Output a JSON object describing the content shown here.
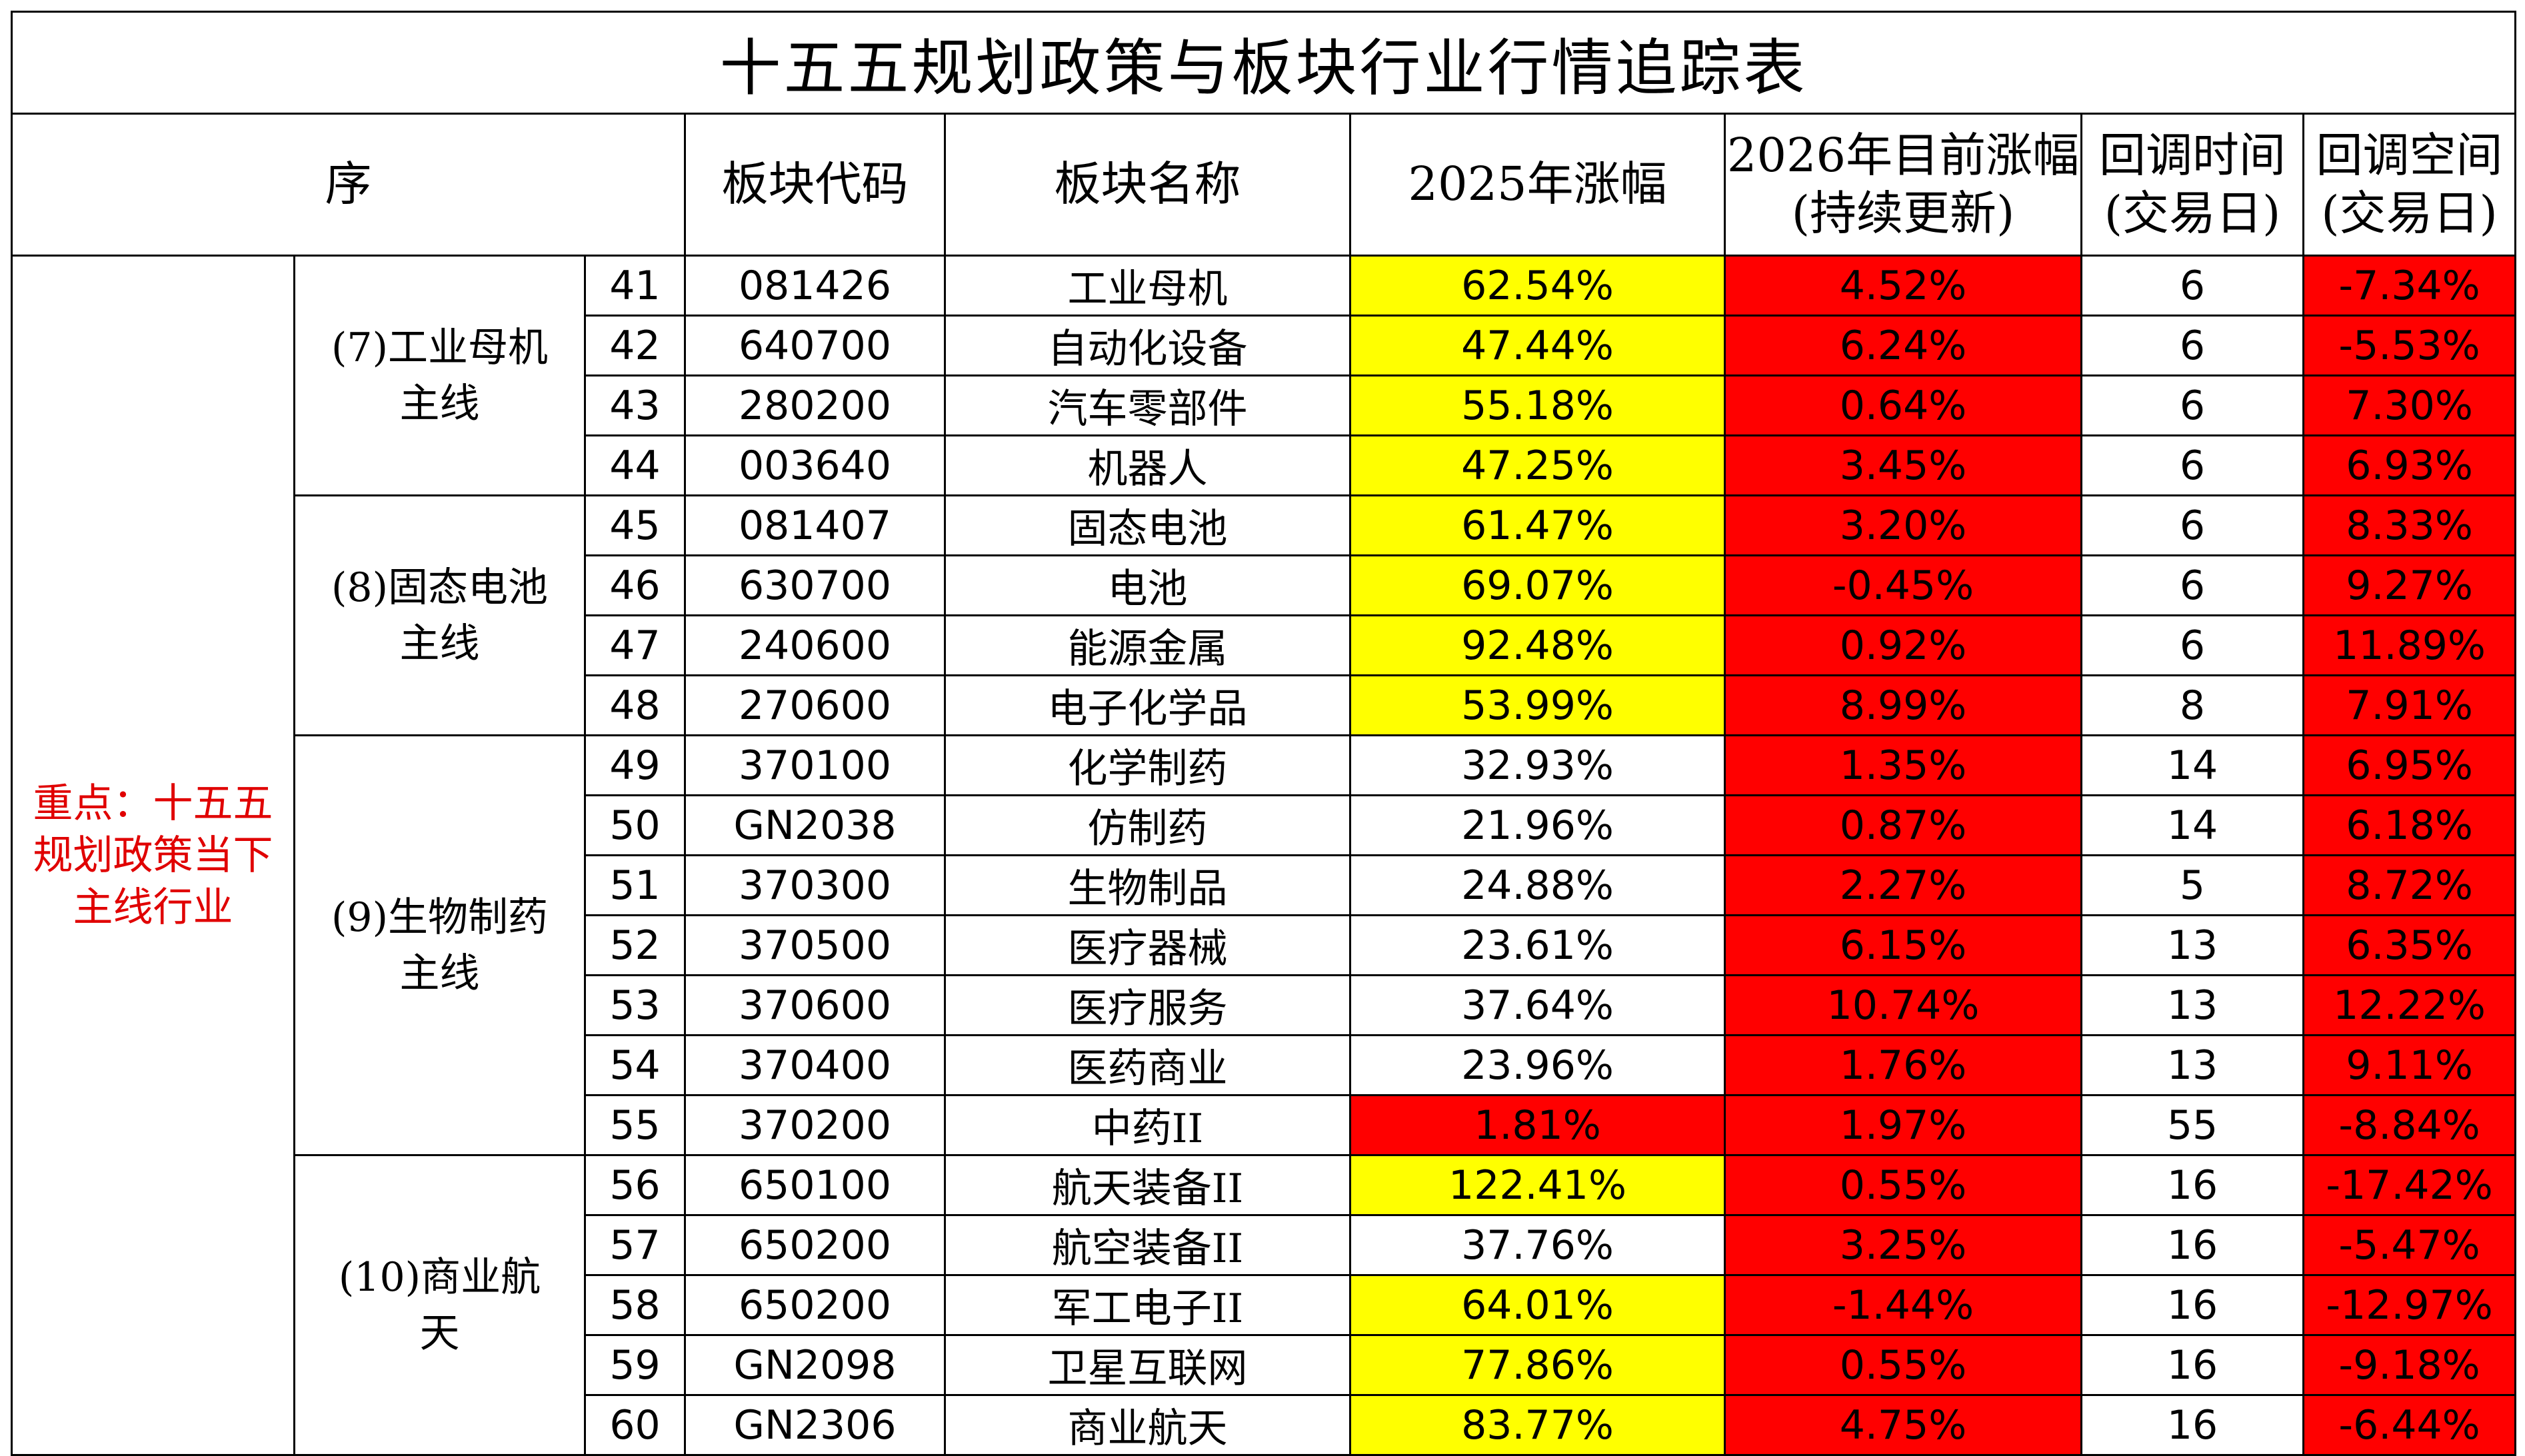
{
  "title": "十五五规划政策与板块行业行情追踪表",
  "headers": {
    "seq": "序",
    "code": "板块代码",
    "name": "板块名称",
    "gain2025": "2025年涨幅",
    "gain2026_line1": "2026年目前涨幅",
    "gain2026_line2": "(持续更新)",
    "pullback_time_line1": "回调时间",
    "pullback_time_line2": "(交易日)",
    "pullback_space_line1": "回调空间",
    "pullback_space_line2": "(交易日)"
  },
  "focus_note": "重点：十五五规划政策当下主线行业",
  "groups": [
    {
      "label_line1": "(7)工业母机",
      "label_line2": "主线"
    },
    {
      "label_line1": "(8)固态电池",
      "label_line2": "主线"
    },
    {
      "label_line1": "(9)生物制药",
      "label_line2": "主线"
    },
    {
      "label_line1": "(10)商业航",
      "label_line2": "天"
    }
  ],
  "rows": [
    {
      "seq": "41",
      "code": "081426",
      "name": "工业母机",
      "gain2025": "62.54%",
      "gain2026": "4.52%",
      "days": "6",
      "space": "-7.34%"
    },
    {
      "seq": "42",
      "code": "640700",
      "name": "自动化设备",
      "gain2025": "47.44%",
      "gain2026": "6.24%",
      "days": "6",
      "space": "-5.53%"
    },
    {
      "seq": "43",
      "code": "280200",
      "name": "汽车零部件",
      "gain2025": "55.18%",
      "gain2026": "0.64%",
      "days": "6",
      "space": "7.30%"
    },
    {
      "seq": "44",
      "code": "003640",
      "name": "机器人",
      "gain2025": "47.25%",
      "gain2026": "3.45%",
      "days": "6",
      "space": "6.93%"
    },
    {
      "seq": "45",
      "code": "081407",
      "name": "固态电池",
      "gain2025": "61.47%",
      "gain2026": "3.20%",
      "days": "6",
      "space": "8.33%"
    },
    {
      "seq": "46",
      "code": "630700",
      "name": "电池",
      "gain2025": "69.07%",
      "gain2026": "-0.45%",
      "days": "6",
      "space": "9.27%"
    },
    {
      "seq": "47",
      "code": "240600",
      "name": "能源金属",
      "gain2025": "92.48%",
      "gain2026": "0.92%",
      "days": "6",
      "space": "11.89%"
    },
    {
      "seq": "48",
      "code": "270600",
      "name": "电子化学品",
      "gain2025": "53.99%",
      "gain2026": "8.99%",
      "days": "8",
      "space": "7.91%"
    },
    {
      "seq": "49",
      "code": "370100",
      "name": "化学制药",
      "gain2025": "32.93%",
      "gain2026": "1.35%",
      "days": "14",
      "space": "6.95%"
    },
    {
      "seq": "50",
      "code": "GN2038",
      "name": "仿制药",
      "gain2025": "21.96%",
      "gain2026": "0.87%",
      "days": "14",
      "space": "6.18%"
    },
    {
      "seq": "51",
      "code": "370300",
      "name": "生物制品",
      "gain2025": "24.88%",
      "gain2026": "2.27%",
      "days": "5",
      "space": "8.72%"
    },
    {
      "seq": "52",
      "code": "370500",
      "name": "医疗器械",
      "gain2025": "23.61%",
      "gain2026": "6.15%",
      "days": "13",
      "space": "6.35%"
    },
    {
      "seq": "53",
      "code": "370600",
      "name": "医疗服务",
      "gain2025": "37.64%",
      "gain2026": "10.74%",
      "days": "13",
      "space": "12.22%"
    },
    {
      "seq": "54",
      "code": "370400",
      "name": "医药商业",
      "gain2025": "23.96%",
      "gain2026": "1.76%",
      "days": "13",
      "space": "9.11%"
    },
    {
      "seq": "55",
      "code": "370200",
      "name": "中药II",
      "gain2025": "1.81%",
      "gain2026": "1.97%",
      "days": "55",
      "space": "-8.84%"
    },
    {
      "seq": "56",
      "code": "650100",
      "name": "航天装备II",
      "gain2025": "122.41%",
      "gain2026": "0.55%",
      "days": "16",
      "space": "-17.42%"
    },
    {
      "seq": "57",
      "code": "650200",
      "name": "航空装备II",
      "gain2025": "37.76%",
      "gain2026": "3.25%",
      "days": "16",
      "space": "-5.47%"
    },
    {
      "seq": "58",
      "code": "650200",
      "name": "军工电子II",
      "gain2025": "64.01%",
      "gain2026": "-1.44%",
      "days": "16",
      "space": "-12.97%"
    },
    {
      "seq": "59",
      "code": "GN2098",
      "name": "卫星互联网",
      "gain2025": "77.86%",
      "gain2026": "0.55%",
      "days": "16",
      "space": "-9.18%"
    },
    {
      "seq": "60",
      "code": "GN2306",
      "name": "商业航天",
      "gain2025": "83.77%",
      "gain2026": "4.75%",
      "days": "16",
      "space": "-6.44%"
    }
  ],
  "highlight_colors": {
    "yellow": "#ffff00",
    "red": "#ff0000",
    "focus_text": "#e00000"
  }
}
